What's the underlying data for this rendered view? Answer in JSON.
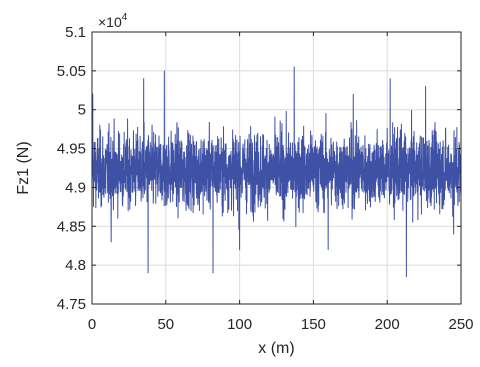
{
  "chart_data": {
    "type": "line",
    "xlabel": "x (m)",
    "ylabel": "Fz1 (N)",
    "xlim": [
      0,
      250
    ],
    "ylim": [
      4.75,
      5.1
    ],
    "y_exponent_label": "×10",
    "y_exponent_power": "4",
    "x_ticks": [
      "0",
      "50",
      "100",
      "150",
      "200",
      "250"
    ],
    "y_ticks": [
      "4.75",
      "4.8",
      "4.85",
      "4.9",
      "4.95",
      "5",
      "5.05",
      "5.1"
    ],
    "grid": true,
    "series": [
      {
        "color": "#3f51a5",
        "mean": 4.922,
        "x_step": 0.1,
        "peaks": [
          {
            "x": 0.5,
            "y": 5.02
          },
          {
            "x": 13,
            "y": 4.83
          },
          {
            "x": 35,
            "y": 5.04
          },
          {
            "x": 38,
            "y": 4.79
          },
          {
            "x": 49,
            "y": 5.05
          },
          {
            "x": 82,
            "y": 4.79
          },
          {
            "x": 100,
            "y": 4.82
          },
          {
            "x": 137,
            "y": 5.055
          },
          {
            "x": 160,
            "y": 4.82
          },
          {
            "x": 177,
            "y": 5.02
          },
          {
            "x": 202,
            "y": 5.04
          },
          {
            "x": 213,
            "y": 4.785
          },
          {
            "x": 226,
            "y": 5.03
          },
          {
            "x": 245,
            "y": 4.84
          }
        ]
      }
    ]
  }
}
